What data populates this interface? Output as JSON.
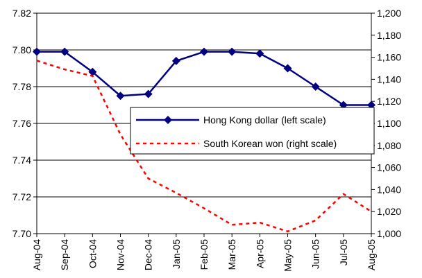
{
  "chart_data": {
    "type": "line",
    "categories": [
      "Aug-04",
      "Sep-04",
      "Oct-04",
      "Nov-04",
      "Dec-04",
      "Jan-05",
      "Feb-05",
      "Mar-05",
      "Apr-05",
      "May-05",
      "Jun-05",
      "Jul-05",
      "Aug-05"
    ],
    "series": [
      {
        "name": "Hong Kong dollar (left scale)",
        "axis": "left",
        "color": "#000080",
        "style": "solid-diamond",
        "values": [
          7.799,
          7.799,
          7.788,
          7.775,
          7.776,
          7.794,
          7.799,
          7.799,
          7.798,
          7.79,
          7.78,
          7.77,
          7.77
        ]
      },
      {
        "name": "South Korean won (right scale)",
        "axis": "right",
        "color": "#ff0000",
        "style": "dashed",
        "x": [
          0,
          1,
          2,
          3,
          4,
          5,
          6,
          7,
          8,
          9,
          10,
          11,
          12
        ],
        "values": [
          1157,
          1149,
          1143,
          1090,
          1050,
          1037,
          1023,
          1008,
          1010,
          1002,
          1012,
          1036,
          1020
        ]
      }
    ],
    "left_axis": {
      "ylim": [
        7.7,
        7.82
      ],
      "ticks": [
        "7.70",
        "7.72",
        "7.74",
        "7.76",
        "7.78",
        "7.80",
        "7.82"
      ]
    },
    "right_axis": {
      "ylim": [
        1000,
        1200
      ],
      "ticks": [
        "1,000",
        "1,020",
        "1,040",
        "1,060",
        "1,080",
        "1,100",
        "1,120",
        "1,140",
        "1,160",
        "1,180",
        "1,200"
      ]
    },
    "grid": "horizontal",
    "legend_position": "right-center"
  }
}
